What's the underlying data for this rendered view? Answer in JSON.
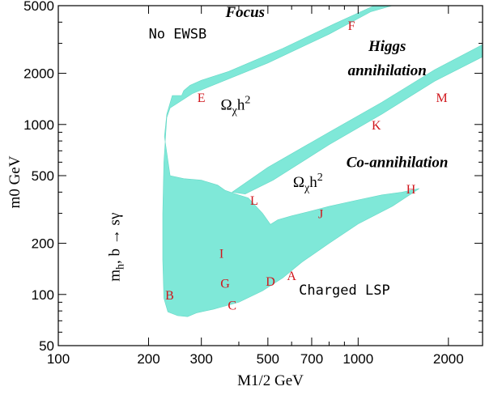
{
  "chart_data": {
    "type": "scatter",
    "xlabel": "M1/2 GeV",
    "ylabel": "m0 GeV",
    "xscale": "log",
    "yscale": "log",
    "xlim": [
      100,
      2600
    ],
    "ylim": [
      50,
      5000
    ],
    "xticks": [
      100,
      200,
      300,
      500,
      700,
      1000,
      2000
    ],
    "xtick_labels": [
      "100",
      "200",
      "300",
      "500",
      "700",
      "1000",
      "2000"
    ],
    "yticks": [
      50,
      100,
      200,
      500,
      1000,
      2000,
      5000
    ],
    "ytick_labels": [
      "50",
      "100",
      "200",
      "500",
      "1000",
      "2000",
      "5000"
    ],
    "region_labels": [
      {
        "text": "Focus",
        "x": 420,
        "y": 4300
      },
      {
        "text": "Higgs",
        "x": 1250,
        "y": 2700
      },
      {
        "text": "annihilation",
        "x": 1250,
        "y": 1950
      },
      {
        "text": "Co-annihilation",
        "x": 1350,
        "y": 560
      }
    ],
    "notes": [
      {
        "text": "No EWSB",
        "x": 250,
        "y": 3200
      },
      {
        "text": "Charged LSP",
        "x": 900,
        "y": 100
      }
    ],
    "omega_labels": [
      {
        "base": "Ω",
        "sub": "χ",
        "sup": "2",
        "mid": "h",
        "x": 390,
        "y": 1220
      },
      {
        "base": "Ω",
        "sub": "χ",
        "sup": "2",
        "mid": "h",
        "x": 680,
        "y": 430
      }
    ],
    "side_label": {
      "main": "m",
      "sub": "h",
      "rest": ", b → sγ",
      "x": 160,
      "y": 190
    },
    "benchmarks": [
      {
        "name": "A",
        "x": 600,
        "y": 130
      },
      {
        "name": "B",
        "x": 235,
        "y": 100
      },
      {
        "name": "C",
        "x": 380,
        "y": 87
      },
      {
        "name": "D",
        "x": 510,
        "y": 120
      },
      {
        "name": "E",
        "x": 300,
        "y": 1450
      },
      {
        "name": "F",
        "x": 950,
        "y": 3850
      },
      {
        "name": "G",
        "x": 360,
        "y": 117
      },
      {
        "name": "H",
        "x": 1500,
        "y": 420
      },
      {
        "name": "I",
        "x": 350,
        "y": 175
      },
      {
        "name": "J",
        "x": 750,
        "y": 300
      },
      {
        "name": "K",
        "x": 1150,
        "y": 1000
      },
      {
        "name": "L",
        "x": 450,
        "y": 360
      },
      {
        "name": "M",
        "x": 1900,
        "y": 1450
      }
    ],
    "regions": [
      {
        "name": "wmap-focus-band",
        "polygon": [
          [
            240,
            1480
          ],
          [
            230,
            1150
          ],
          [
            226,
            850
          ],
          [
            236,
            500
          ],
          [
            262,
            480
          ],
          [
            300,
            470
          ],
          [
            340,
            440
          ],
          [
            360,
            410
          ],
          [
            390,
            390
          ],
          [
            430,
            370
          ],
          [
            480,
            300
          ],
          [
            510,
            258
          ],
          [
            540,
            275
          ],
          [
            600,
            290
          ],
          [
            700,
            310
          ],
          [
            800,
            330
          ],
          [
            1000,
            360
          ],
          [
            1200,
            385
          ],
          [
            1400,
            400
          ],
          [
            1600,
            420
          ],
          [
            1300,
            330
          ],
          [
            1000,
            260
          ],
          [
            800,
            200
          ],
          [
            650,
            155
          ],
          [
            560,
            125
          ],
          [
            480,
            105
          ],
          [
            400,
            90
          ],
          [
            330,
            82
          ],
          [
            290,
            78
          ],
          [
            270,
            74
          ],
          [
            250,
            75
          ],
          [
            232,
            79
          ],
          [
            225,
            95
          ],
          [
            223,
            160
          ],
          [
            223,
            300
          ],
          [
            225,
            600
          ],
          [
            230,
            1100
          ],
          [
            236,
            1250
          ],
          [
            280,
            1520
          ],
          [
            500,
            2300
          ],
          [
            800,
            3400
          ],
          [
            1100,
            4600
          ],
          [
            1300,
            5000
          ],
          [
            1130,
            5000
          ],
          [
            830,
            3900
          ],
          [
            560,
            2800
          ],
          [
            370,
            2050
          ],
          [
            300,
            1820
          ],
          [
            275,
            1700
          ],
          [
            262,
            1580
          ],
          [
            258,
            1480
          ]
        ]
      },
      {
        "name": "higgs-funnel-band",
        "polygon": [
          [
            380,
            400
          ],
          [
            500,
            560
          ],
          [
            800,
            900
          ],
          [
            1200,
            1350
          ],
          [
            1800,
            2100
          ],
          [
            2600,
            2950
          ],
          [
            2600,
            2500
          ],
          [
            1800,
            1800
          ],
          [
            1200,
            1150
          ],
          [
            800,
            760
          ],
          [
            520,
            470
          ],
          [
            420,
            390
          ]
        ]
      }
    ]
  }
}
